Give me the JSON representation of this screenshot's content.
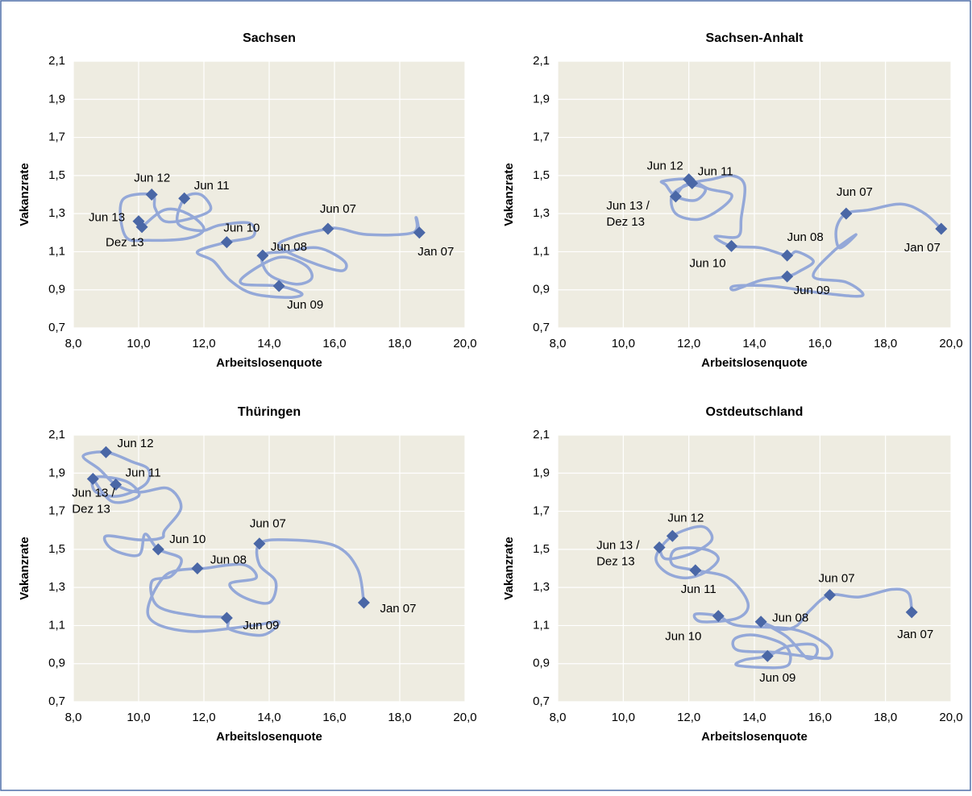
{
  "chart_data": [
    {
      "type": "scatter",
      "title": "Sachsen",
      "x_label": "Arbeitslosenquote",
      "y_label": "Vakanzrate",
      "xlim": [
        8,
        20
      ],
      "ylim": [
        0.7,
        2.1
      ],
      "grid": true,
      "xticks": [
        {
          "value": 8,
          "label": "8,0"
        },
        {
          "value": 10,
          "label": "10,0"
        },
        {
          "value": 12,
          "label": "12,0"
        },
        {
          "value": 14,
          "label": "14,0"
        },
        {
          "value": 16,
          "label": "16,0"
        },
        {
          "value": 18,
          "label": "18,0"
        },
        {
          "value": 20,
          "label": "20,0"
        }
      ],
      "yticks": [
        {
          "value": 0.7,
          "label": "0,7"
        },
        {
          "value": 0.9,
          "label": "0,9"
        },
        {
          "value": 1.1,
          "label": "1,1"
        },
        {
          "value": 1.3,
          "label": "1,3"
        },
        {
          "value": 1.5,
          "label": "1,5"
        },
        {
          "value": 1.7,
          "label": "1,7"
        },
        {
          "value": 1.9,
          "label": "1,9"
        },
        {
          "value": 2.1,
          "label": "2,1"
        }
      ],
      "series": [
        {
          "style": "line",
          "color": "#94a8d8",
          "x": [
            18.6,
            18.5,
            18.4,
            17.0,
            16.2,
            15.8,
            14.8,
            14.3,
            15.2,
            16.2,
            16.3,
            15.5,
            14.5,
            13.8,
            14.0,
            14.8,
            15.3,
            15.1,
            14.3,
            13.3,
            13.2,
            14.3,
            15.0,
            14.6,
            13.5,
            12.8,
            12.3,
            11.8,
            12.7,
            13.5,
            13.4,
            12.5,
            11.9,
            11.2,
            11.4,
            11.9,
            12.2,
            11.5,
            10.8,
            10.5,
            10.4,
            9.5,
            9.6,
            10.3,
            11.5,
            12.0,
            11.5,
            10.8,
            10.1
          ],
          "values": [
            1.2,
            1.28,
            1.2,
            1.19,
            1.22,
            1.22,
            1.18,
            1.13,
            1.05,
            1.0,
            1.05,
            1.12,
            1.1,
            1.08,
            0.98,
            0.93,
            0.96,
            1.03,
            1.07,
            0.98,
            0.93,
            0.92,
            0.88,
            0.86,
            0.88,
            0.95,
            1.05,
            1.1,
            1.15,
            1.18,
            1.25,
            1.24,
            1.21,
            1.25,
            1.38,
            1.4,
            1.32,
            1.27,
            1.26,
            1.33,
            1.4,
            1.37,
            1.18,
            1.16,
            1.17,
            1.22,
            1.3,
            1.32,
            1.23
          ]
        },
        {
          "style": "markers",
          "color": "#4a67a6",
          "x": [
            18.6,
            15.8,
            13.8,
            14.3,
            12.7,
            11.4,
            10.4,
            10.0,
            10.1
          ],
          "values": [
            1.2,
            1.22,
            1.08,
            0.92,
            1.15,
            1.38,
            1.4,
            1.26,
            1.23
          ],
          "labels": [
            [
              "Jan 07"
            ],
            [
              "Jun 07"
            ],
            [
              "Jun 08"
            ],
            [
              "Jun 09"
            ],
            [
              "Jun 10"
            ],
            [
              "Jun 11"
            ],
            [
              "Jun 12"
            ],
            [
              "Jun 13"
            ],
            [
              "Dez 13"
            ]
          ]
        }
      ]
    },
    {
      "type": "scatter",
      "title": "Sachsen-Anhalt",
      "x_label": "Arbeitslosenquote",
      "y_label": "Vakanzrate",
      "xlim": [
        8,
        20
      ],
      "ylim": [
        0.7,
        2.1
      ],
      "grid": true,
      "xticks": [
        {
          "value": 8,
          "label": "8,0"
        },
        {
          "value": 10,
          "label": "10,0"
        },
        {
          "value": 12,
          "label": "12,0"
        },
        {
          "value": 14,
          "label": "14,0"
        },
        {
          "value": 16,
          "label": "16,0"
        },
        {
          "value": 18,
          "label": "18,0"
        },
        {
          "value": 20,
          "label": "20,0"
        }
      ],
      "yticks": [
        {
          "value": 0.7,
          "label": "0,7"
        },
        {
          "value": 0.9,
          "label": "0,9"
        },
        {
          "value": 1.1,
          "label": "1,1"
        },
        {
          "value": 1.3,
          "label": "1,3"
        },
        {
          "value": 1.5,
          "label": "1,5"
        },
        {
          "value": 1.7,
          "label": "1,7"
        },
        {
          "value": 1.9,
          "label": "1,9"
        },
        {
          "value": 2.1,
          "label": "2,1"
        }
      ],
      "series": [
        {
          "style": "line",
          "color": "#94a8d8",
          "x": [
            19.7,
            19.2,
            18.5,
            17.5,
            16.8,
            16.5,
            16.6,
            17.1,
            16.4,
            15.8,
            16.8,
            17.3,
            16.2,
            14.5,
            13.4,
            13.4,
            14.2,
            15.0,
            15.4,
            15.8,
            15.3,
            15.0,
            14.2,
            13.3,
            12.8,
            13.5,
            13.6,
            13.7,
            13.3,
            12.7,
            12.1,
            11.5,
            11.6,
            12.3,
            13.0,
            13.3,
            12.6,
            12.0,
            11.2,
            11.3,
            11.6,
            12.2,
            12.5,
            11.9,
            11.6
          ],
          "values": [
            1.22,
            1.3,
            1.35,
            1.32,
            1.3,
            1.22,
            1.12,
            1.19,
            1.1,
            0.97,
            0.94,
            0.87,
            0.88,
            0.92,
            0.92,
            0.9,
            0.95,
            0.97,
            1.0,
            1.05,
            1.1,
            1.08,
            1.12,
            1.13,
            1.18,
            1.18,
            1.28,
            1.45,
            1.5,
            1.48,
            1.46,
            1.4,
            1.3,
            1.27,
            1.33,
            1.4,
            1.43,
            1.48,
            1.47,
            1.45,
            1.39,
            1.37,
            1.43,
            1.45,
            1.39
          ]
        },
        {
          "style": "markers",
          "color": "#4a67a6",
          "x": [
            19.7,
            16.8,
            15.0,
            15.0,
            13.3,
            12.1,
            12.0,
            11.6
          ],
          "values": [
            1.22,
            1.3,
            1.08,
            0.97,
            1.13,
            1.46,
            1.48,
            1.39
          ],
          "labels": [
            [
              "Jan 07"
            ],
            [
              "Jun 07"
            ],
            [
              "Jun 08"
            ],
            [
              "Jun 09"
            ],
            [
              "Jun 10"
            ],
            [
              "Jun 11"
            ],
            [
              "Jun 12"
            ],
            [
              "Jun 13 /",
              "Dez 13"
            ]
          ]
        }
      ]
    },
    {
      "type": "scatter",
      "title": "Thüringen",
      "x_label": "Arbeitslosenquote",
      "y_label": "Vakanzrate",
      "xlim": [
        8,
        20
      ],
      "ylim": [
        0.7,
        2.1
      ],
      "grid": true,
      "xticks": [
        {
          "value": 8,
          "label": "8,0"
        },
        {
          "value": 10,
          "label": "10,0"
        },
        {
          "value": 12,
          "label": "12,0"
        },
        {
          "value": 14,
          "label": "14,0"
        },
        {
          "value": 16,
          "label": "16,0"
        },
        {
          "value": 18,
          "label": "18,0"
        },
        {
          "value": 20,
          "label": "20,0"
        }
      ],
      "yticks": [
        {
          "value": 0.7,
          "label": "0,7"
        },
        {
          "value": 0.9,
          "label": "0,9"
        },
        {
          "value": 1.1,
          "label": "1,1"
        },
        {
          "value": 1.3,
          "label": "1,3"
        },
        {
          "value": 1.5,
          "label": "1,5"
        },
        {
          "value": 1.7,
          "label": "1,7"
        },
        {
          "value": 1.9,
          "label": "1,9"
        },
        {
          "value": 2.1,
          "label": "2,1"
        }
      ],
      "series": [
        {
          "style": "line",
          "color": "#94a8d8",
          "x": [
            16.9,
            16.7,
            16.0,
            14.5,
            13.7,
            13.7,
            14.2,
            14.0,
            13.2,
            12.8,
            13.6,
            13.2,
            12.0,
            11.8,
            10.8,
            10.3,
            11.5,
            13.5,
            14.3,
            13.8,
            12.8,
            12.7,
            11.8,
            10.6,
            10.4,
            11.0,
            11.3,
            10.6,
            10.2,
            10.0,
            9.2,
            9.0,
            10.0,
            10.7,
            10.8,
            11.3,
            10.9,
            10.0,
            9.3,
            8.8,
            8.3,
            9.0,
            9.8,
            10.3,
            10.2,
            9.4,
            8.7,
            8.6,
            9.0,
            9.7,
            10.0,
            9.2,
            8.6
          ],
          "values": [
            1.22,
            1.4,
            1.52,
            1.55,
            1.53,
            1.42,
            1.33,
            1.22,
            1.25,
            1.32,
            1.35,
            1.42,
            1.4,
            1.4,
            1.36,
            1.15,
            1.07,
            1.1,
            1.12,
            1.05,
            1.08,
            1.14,
            1.15,
            1.2,
            1.33,
            1.36,
            1.45,
            1.5,
            1.58,
            1.47,
            1.5,
            1.57,
            1.55,
            1.56,
            1.6,
            1.72,
            1.82,
            1.8,
            1.84,
            1.92,
            1.99,
            2.01,
            1.96,
            1.92,
            1.84,
            1.78,
            1.8,
            1.87,
            1.88,
            1.85,
            1.78,
            1.75,
            1.87
          ]
        },
        {
          "style": "markers",
          "color": "#4a67a6",
          "x": [
            16.9,
            13.7,
            11.8,
            12.7,
            10.6,
            9.3,
            9.0,
            8.6
          ],
          "values": [
            1.22,
            1.53,
            1.4,
            1.14,
            1.5,
            1.84,
            2.01,
            1.87
          ],
          "labels": [
            [
              "Jan 07"
            ],
            [
              "Jun 07"
            ],
            [
              "Jun 08"
            ],
            [
              "Jun 09"
            ],
            [
              "Jun 10"
            ],
            [
              "Jun 11"
            ],
            [
              "Jun 12"
            ],
            [
              "Jun 13 /",
              "Dez 13"
            ]
          ]
        }
      ]
    },
    {
      "type": "scatter",
      "title": "Ostdeutschland",
      "x_label": "Arbeitslosenquote",
      "y_label": "Vakanzrate",
      "xlim": [
        8,
        20
      ],
      "ylim": [
        0.7,
        2.1
      ],
      "grid": true,
      "xticks": [
        {
          "value": 8,
          "label": "8,0"
        },
        {
          "value": 10,
          "label": "10,0"
        },
        {
          "value": 12,
          "label": "12,0"
        },
        {
          "value": 14,
          "label": "14,0"
        },
        {
          "value": 16,
          "label": "16,0"
        },
        {
          "value": 18,
          "label": "18,0"
        },
        {
          "value": 20,
          "label": "20,0"
        }
      ],
      "yticks": [
        {
          "value": 0.7,
          "label": "0,7"
        },
        {
          "value": 0.9,
          "label": "0,9"
        },
        {
          "value": 1.1,
          "label": "1,1"
        },
        {
          "value": 1.3,
          "label": "1,3"
        },
        {
          "value": 1.5,
          "label": "1,5"
        },
        {
          "value": 1.7,
          "label": "1,7"
        },
        {
          "value": 1.9,
          "label": "1,9"
        },
        {
          "value": 2.1,
          "label": "2,1"
        }
      ],
      "series": [
        {
          "style": "line",
          "color": "#94a8d8",
          "x": [
            18.8,
            18.7,
            18.2,
            17.2,
            16.3,
            15.7,
            15.3,
            14.8,
            14.2,
            15.0,
            15.6,
            15.9,
            15.8,
            15.0,
            14.4,
            13.7,
            13.5,
            14.8,
            15.1,
            14.9,
            14.0,
            13.4,
            13.5,
            14.6,
            15.5,
            16.3,
            16.2,
            15.2,
            13.5,
            12.9,
            12.2,
            12.4,
            13.5,
            13.8,
            13.2,
            12.2,
            11.5,
            11.6,
            12.5,
            12.9,
            12.5,
            11.9,
            11.3,
            11.0,
            11.5,
            12.4,
            12.7,
            12.1,
            11.3,
            11.1
          ],
          "values": [
            1.17,
            1.27,
            1.29,
            1.25,
            1.26,
            1.18,
            1.1,
            1.08,
            1.12,
            1.04,
            0.93,
            0.95,
            1.0,
            0.99,
            0.94,
            0.92,
            0.89,
            0.88,
            0.92,
            1.0,
            1.05,
            1.03,
            0.97,
            0.96,
            0.94,
            0.93,
            1.0,
            1.08,
            1.1,
            1.15,
            1.16,
            1.12,
            1.14,
            1.22,
            1.35,
            1.39,
            1.42,
            1.5,
            1.5,
            1.45,
            1.38,
            1.35,
            1.38,
            1.46,
            1.57,
            1.62,
            1.55,
            1.48,
            1.45,
            1.51
          ]
        },
        {
          "style": "markers",
          "color": "#4a67a6",
          "x": [
            18.8,
            16.3,
            14.2,
            14.4,
            12.9,
            12.2,
            11.5,
            11.1
          ],
          "values": [
            1.17,
            1.26,
            1.12,
            0.94,
            1.15,
            1.39,
            1.57,
            1.51
          ],
          "labels": [
            [
              "Jan 07"
            ],
            [
              "Jun 07"
            ],
            [
              "Jun 08"
            ],
            [
              "Jun 09"
            ],
            [
              "Jun 10"
            ],
            [
              "Jun 11"
            ],
            [
              "Jun 12"
            ],
            [
              "Jun 13 /",
              "Dez 13"
            ]
          ]
        }
      ]
    }
  ]
}
